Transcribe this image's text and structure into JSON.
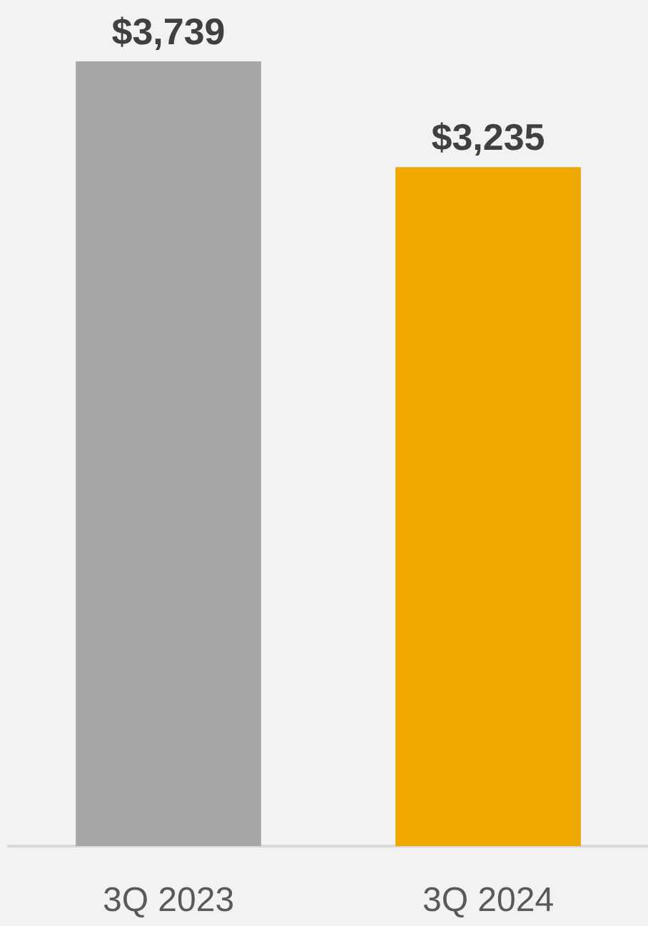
{
  "chart_data": {
    "type": "bar",
    "categories": [
      "3Q 2023",
      "3Q 2024"
    ],
    "values": [
      3739,
      3235
    ],
    "colors": [
      "#a6a6a6",
      "#f0a800"
    ],
    "value_labels": [
      "$3,739",
      "$3,235"
    ]
  }
}
